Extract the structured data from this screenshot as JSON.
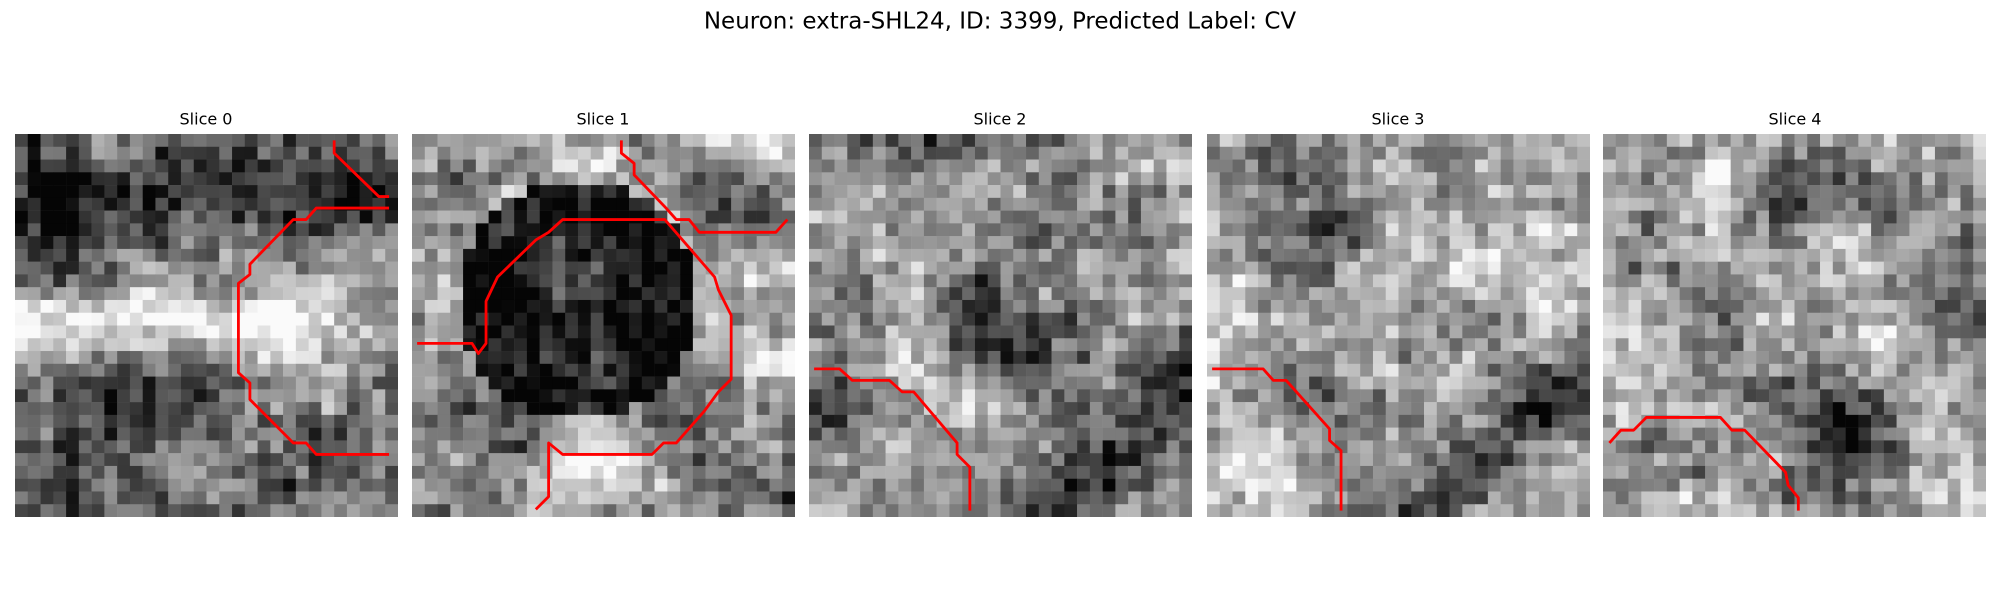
{
  "title": "Neuron: extra-SHL24, ID: 3399, Predicted Label: CV",
  "panels": [
    {
      "title": "Slice 0"
    },
    {
      "title": "Slice 1"
    },
    {
      "title": "Slice 2"
    },
    {
      "title": "Slice 3"
    },
    {
      "title": "Slice 4"
    }
  ]
}
